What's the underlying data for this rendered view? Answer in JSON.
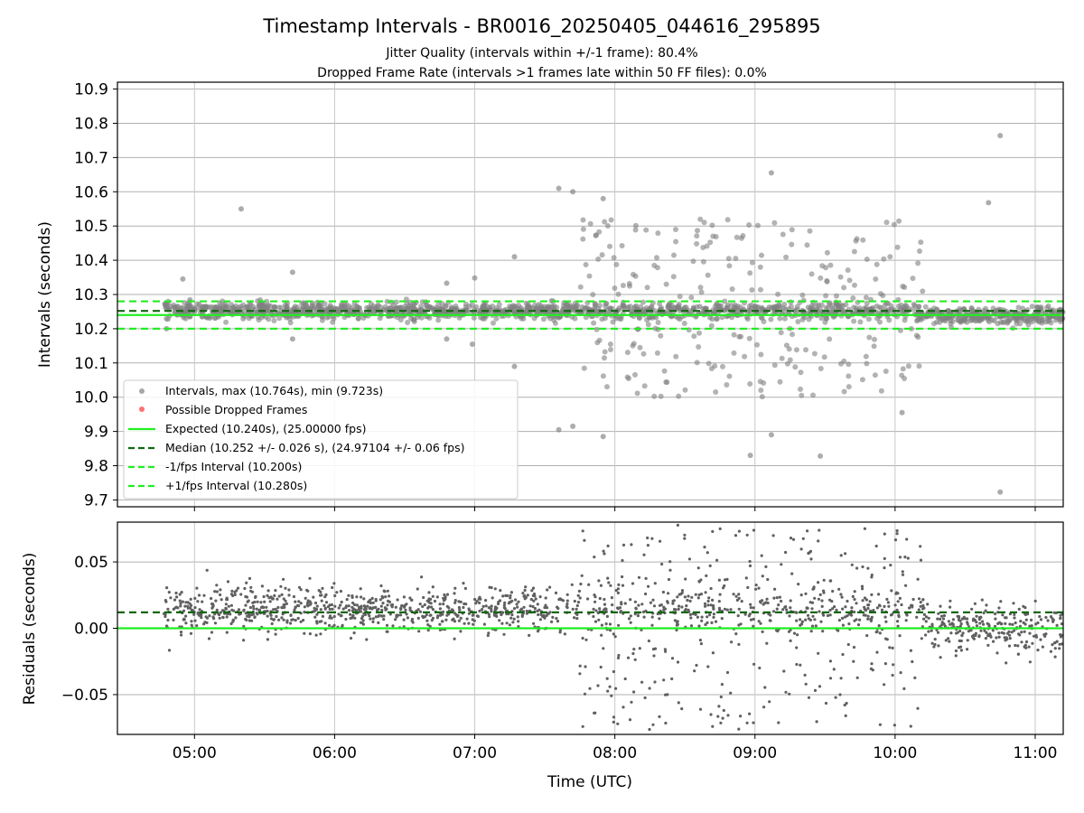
{
  "chart_data": [
    {
      "type": "scatter",
      "title": "Timestamp Intervals - BR0016_20250405_044616_295895",
      "subtitle_lines": [
        "Jitter Quality (intervals within +/-1 frame): 80.4%",
        "Dropped Frame Rate (intervals >1 frames late within 50 FF files): 0.0%"
      ],
      "ylabel": "Intervals (seconds)",
      "xlabel": "",
      "ylim": [
        9.68,
        10.92
      ],
      "xlim_hours": [
        4.45,
        11.2
      ],
      "y_ticks": [
        9.7,
        9.8,
        9.9,
        10.0,
        10.1,
        10.2,
        10.3,
        10.4,
        10.5,
        10.6,
        10.7,
        10.8,
        10.9
      ],
      "y_tick_labels": [
        "9.7",
        "9.8",
        "9.9",
        "10.0",
        "10.1",
        "10.2",
        "10.3",
        "10.4",
        "10.5",
        "10.6",
        "10.7",
        "10.8",
        "10.9"
      ],
      "grid": true,
      "legend_position": "lower-left",
      "legend": [
        {
          "label": "Intervals, max (10.764s), min (9.723s)",
          "kind": "dot",
          "color": "#808080"
        },
        {
          "label": "Possible Dropped Frames",
          "kind": "dot",
          "color": "#ff4d4d"
        },
        {
          "label": "Expected (10.240s), (25.00000 fps)",
          "kind": "solid",
          "color": "#22ee22"
        },
        {
          "label": "Median (10.252 +/- 0.026 s), (24.97104 +/- 0.06 fps)",
          "kind": "dashed",
          "color": "#116611"
        },
        {
          "label": "-1/fps Interval (10.200s)",
          "kind": "dashed",
          "color": "#22ee22"
        },
        {
          "label": "+1/fps Interval (10.280s)",
          "kind": "dashed",
          "color": "#22ee22"
        }
      ],
      "reference_lines": [
        {
          "value": 10.24,
          "style": "solid",
          "color": "#22ee22"
        },
        {
          "value": 10.252,
          "style": "dashed",
          "color": "#116611"
        },
        {
          "value": 10.2,
          "style": "dashed",
          "color": "#22ee22"
        },
        {
          "value": 10.28,
          "style": "dashed",
          "color": "#22ee22"
        }
      ],
      "notable_points": [
        {
          "x": "04:48",
          "y": 10.2
        },
        {
          "x": "04:55",
          "y": 10.345
        },
        {
          "x": "05:20",
          "y": 10.55
        },
        {
          "x": "05:42",
          "y": 10.365
        },
        {
          "x": "05:42",
          "y": 10.17
        },
        {
          "x": "06:48",
          "y": 10.333
        },
        {
          "x": "06:48",
          "y": 10.17
        },
        {
          "x": "06:59",
          "y": 10.155
        },
        {
          "x": "07:00",
          "y": 10.348
        },
        {
          "x": "07:17",
          "y": 10.41
        },
        {
          "x": "07:17",
          "y": 10.09
        },
        {
          "x": "07:36",
          "y": 10.61
        },
        {
          "x": "07:36",
          "y": 9.905
        },
        {
          "x": "07:42",
          "y": 10.6
        },
        {
          "x": "07:42",
          "y": 9.915
        },
        {
          "x": "07:55",
          "y": 10.58
        },
        {
          "x": "07:55",
          "y": 9.885
        },
        {
          "x": "08:58",
          "y": 9.83
        },
        {
          "x": "09:07",
          "y": 10.655
        },
        {
          "x": "09:07",
          "y": 9.89
        },
        {
          "x": "09:28",
          "y": 9.828
        },
        {
          "x": "10:40",
          "y": 10.568
        },
        {
          "x": "10:45",
          "y": 10.764
        },
        {
          "x": "10:45",
          "y": 9.723
        },
        {
          "x": "10:03",
          "y": 9.955
        }
      ],
      "point_color": "#808080"
    },
    {
      "type": "scatter",
      "ylabel": "Residuals (seconds)",
      "xlabel": "Time (UTC)",
      "ylim": [
        -0.08,
        0.08
      ],
      "y_ticks": [
        -0.05,
        0.0,
        0.05
      ],
      "y_tick_labels": [
        "−0.05",
        "0.00",
        "0.05"
      ],
      "x_tick_labels": [
        "05:00",
        "06:00",
        "07:00",
        "08:00",
        "09:00",
        "10:00",
        "11:00"
      ],
      "grid": true,
      "reference_lines": [
        {
          "value": 0.0,
          "style": "solid",
          "color": "#22ee22"
        },
        {
          "value": 0.012,
          "style": "dashed",
          "color": "#116611"
        }
      ],
      "point_color": "#606060"
    }
  ]
}
